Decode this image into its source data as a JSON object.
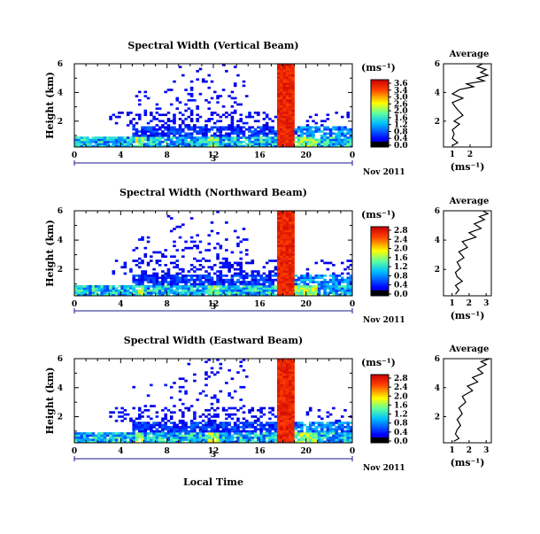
{
  "figure": {
    "xlabel": "Local Time",
    "date_label": "Nov 2011",
    "date_day": "3"
  },
  "chart_data": [
    {
      "type": "heatmap",
      "title": "Spectral Width (Vertical Beam)",
      "ylabel": "Height (km)",
      "xlabel": "Local Time",
      "x_ticks": [
        "0",
        "4",
        "8",
        "12",
        "16",
        "20",
        "0"
      ],
      "y_ticks": [
        "2",
        "4",
        "6"
      ],
      "xlim": [
        0,
        24
      ],
      "ylim": [
        0.2,
        6
      ],
      "colorbar": {
        "label": "(ms⁻¹)",
        "ticks": [
          "3.6",
          "3.4",
          "3.0",
          "2.6",
          "2.0",
          "1.6",
          "1.2",
          "0.8",
          "0.4",
          "0.0"
        ],
        "range": [
          0,
          3.6
        ]
      },
      "average_profile": {
        "title": "Average",
        "xlabel": "(ms⁻¹)",
        "x_ticks": [
          "1",
          "2"
        ],
        "y_ticks": [
          "2",
          "4",
          "6"
        ],
        "xlim": [
          0.5,
          3.2
        ],
        "points": [
          [
            1.0,
            0.3
          ],
          [
            1.3,
            0.5
          ],
          [
            1.0,
            0.8
          ],
          [
            1.1,
            1.1
          ],
          [
            1.0,
            1.4
          ],
          [
            1.4,
            1.8
          ],
          [
            1.1,
            2.0
          ],
          [
            1.6,
            2.4
          ],
          [
            1.3,
            2.8
          ],
          [
            1.1,
            3.1
          ],
          [
            1.0,
            3.3
          ],
          [
            1.6,
            3.6
          ],
          [
            1.0,
            3.9
          ],
          [
            1.4,
            4.2
          ],
          [
            2.2,
            4.4
          ],
          [
            1.8,
            4.6
          ],
          [
            2.8,
            4.8
          ],
          [
            2.4,
            5.0
          ],
          [
            3.0,
            5.2
          ],
          [
            2.6,
            5.4
          ],
          [
            2.9,
            5.6
          ],
          [
            2.4,
            5.8
          ],
          [
            2.7,
            6.0
          ]
        ]
      }
    },
    {
      "type": "heatmap",
      "title": "Spectral Width (Northward Beam)",
      "ylabel": "Height (km)",
      "xlabel": "Local Time",
      "x_ticks": [
        "0",
        "4",
        "8",
        "12",
        "16",
        "20",
        "0"
      ],
      "y_ticks": [
        "2",
        "4",
        "6"
      ],
      "xlim": [
        0,
        24
      ],
      "ylim": [
        0.2,
        6
      ],
      "colorbar": {
        "label": "(ms⁻¹)",
        "ticks": [
          "2.8",
          "2.4",
          "2.0",
          "1.6",
          "1.2",
          "0.8",
          "0.4",
          "0.0"
        ],
        "range": [
          0,
          2.8
        ]
      },
      "average_profile": {
        "title": "Average",
        "xlabel": "(ms⁻¹)",
        "x_ticks": [
          "1",
          "2",
          "3"
        ],
        "y_ticks": [
          "2",
          "4",
          "6"
        ],
        "xlim": [
          0.5,
          3.3
        ],
        "points": [
          [
            1.2,
            0.3
          ],
          [
            1.4,
            0.6
          ],
          [
            1.2,
            0.9
          ],
          [
            1.6,
            1.2
          ],
          [
            1.3,
            1.5
          ],
          [
            1.2,
            1.8
          ],
          [
            1.5,
            2.1
          ],
          [
            1.3,
            2.5
          ],
          [
            1.7,
            2.8
          ],
          [
            1.4,
            3.2
          ],
          [
            1.9,
            3.5
          ],
          [
            1.6,
            3.9
          ],
          [
            2.4,
            4.2
          ],
          [
            2.0,
            4.5
          ],
          [
            2.7,
            4.8
          ],
          [
            2.3,
            5.1
          ],
          [
            2.9,
            5.4
          ],
          [
            2.6,
            5.6
          ],
          [
            3.1,
            5.8
          ],
          [
            2.8,
            6.0
          ]
        ]
      }
    },
    {
      "type": "heatmap",
      "title": "Spectral Width (Eastward Beam)",
      "ylabel": "Height (km)",
      "xlabel": "Local Time",
      "x_ticks": [
        "0",
        "4",
        "8",
        "12",
        "16",
        "20",
        "0"
      ],
      "y_ticks": [
        "2",
        "4",
        "6"
      ],
      "xlim": [
        0,
        24
      ],
      "ylim": [
        0.2,
        6
      ],
      "colorbar": {
        "label": "(ms⁻¹)",
        "ticks": [
          "2.8",
          "2.4",
          "2.0",
          "1.6",
          "1.2",
          "0.8",
          "0.4",
          "0.0"
        ],
        "range": [
          0,
          2.8
        ]
      },
      "average_profile": {
        "title": "Average",
        "xlabel": "(ms⁻¹)",
        "x_ticks": [
          "1",
          "2",
          "3"
        ],
        "y_ticks": [
          "2",
          "4",
          "6"
        ],
        "xlim": [
          0.5,
          3.3
        ],
        "points": [
          [
            1.1,
            0.3
          ],
          [
            1.4,
            0.5
          ],
          [
            1.2,
            0.8
          ],
          [
            1.3,
            1.1
          ],
          [
            1.5,
            1.4
          ],
          [
            1.3,
            1.8
          ],
          [
            1.6,
            2.2
          ],
          [
            1.4,
            2.6
          ],
          [
            1.8,
            3.0
          ],
          [
            1.6,
            3.4
          ],
          [
            2.2,
            3.8
          ],
          [
            1.9,
            4.1
          ],
          [
            2.5,
            4.4
          ],
          [
            2.2,
            4.7
          ],
          [
            2.8,
            5.0
          ],
          [
            2.5,
            5.3
          ],
          [
            3.0,
            5.6
          ],
          [
            2.7,
            5.8
          ],
          [
            3.2,
            6.0
          ]
        ]
      }
    }
  ]
}
